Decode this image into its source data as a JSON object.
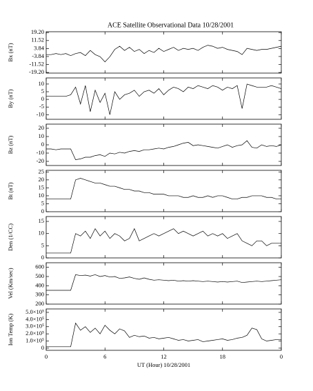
{
  "chart_data": [
    {
      "type": "line",
      "title": "ACE Satellite Observational Data  10/28/2001",
      "ylabel": "Bx (nT)",
      "color": "#000000",
      "x": [
        0,
        0.5,
        1,
        1.5,
        2,
        2.5,
        3,
        3.5,
        4,
        4.5,
        5,
        5.5,
        6,
        6.5,
        7,
        7.5,
        8,
        8.5,
        9,
        9.5,
        10,
        10.5,
        11,
        11.5,
        12,
        12.5,
        13,
        13.5,
        14,
        14.5,
        15,
        15.5,
        16,
        16.5,
        17,
        17.5,
        18,
        18.5,
        19,
        19.5,
        20,
        20.5,
        21,
        21.5,
        22,
        22.5,
        23,
        23.5,
        24
      ],
      "values": [
        -2,
        -2,
        -1,
        -2,
        -1,
        -3,
        -1,
        0,
        -3,
        2,
        -2,
        -4,
        -9,
        -4,
        3,
        6,
        2,
        5,
        1,
        3,
        -1,
        2,
        0,
        4,
        1,
        3,
        5,
        2,
        4,
        3,
        4,
        2,
        5,
        7,
        6,
        4,
        5,
        3,
        2,
        1,
        -2,
        4,
        3,
        2,
        3,
        3,
        4,
        5,
        6
      ],
      "xlim": [
        0,
        24
      ],
      "xticks": [
        0,
        6,
        12,
        18,
        24
      ],
      "ylim": [
        -19.8,
        20
      ],
      "yticks": [
        {
          "value": 19.2,
          "label": "19.20"
        },
        11.52,
        3.84,
        -3.84,
        -11.52,
        {
          "value": -19.2,
          "label": "-19.20"
        }
      ]
    },
    {
      "type": "line",
      "ylabel": "By (nT)",
      "color": "#000000",
      "x": [
        0,
        0.5,
        1,
        1.5,
        2,
        2.5,
        3,
        3.5,
        4,
        4.5,
        5,
        5.5,
        6,
        6.5,
        7,
        7.5,
        8,
        8.5,
        9,
        9.5,
        10,
        10.5,
        11,
        11.5,
        12,
        12.5,
        13,
        13.5,
        14,
        14.5,
        15,
        15.5,
        16,
        16.5,
        17,
        17.5,
        18,
        18.5,
        19,
        19.5,
        20,
        20.5,
        21,
        21.5,
        22,
        22.5,
        23,
        23.5,
        24
      ],
      "values": [
        2,
        2,
        2,
        2,
        2,
        3,
        8,
        -3,
        9,
        -8,
        6,
        -2,
        4,
        -10,
        5,
        0,
        3,
        4,
        6,
        2,
        5,
        6,
        4,
        7,
        3,
        6,
        8,
        7,
        5,
        8,
        7,
        9,
        8,
        7,
        9,
        8,
        6,
        8,
        7,
        9,
        -6,
        10,
        9,
        8,
        8,
        8,
        9,
        8,
        7
      ],
      "xlim": [
        0,
        24
      ],
      "xticks": [
        0,
        6,
        12,
        18,
        24
      ],
      "ylim": [
        -13,
        14
      ],
      "yticks": [
        10,
        5,
        0,
        -5,
        -10
      ]
    },
    {
      "type": "line",
      "ylabel": "Bz (nT)",
      "color": "#000000",
      "x": [
        0,
        0.5,
        1,
        1.5,
        2,
        2.5,
        3,
        3.5,
        4,
        4.5,
        5,
        5.5,
        6,
        6.5,
        7,
        7.5,
        8,
        8.5,
        9,
        9.5,
        10,
        10.5,
        11,
        11.5,
        12,
        12.5,
        13,
        13.5,
        14,
        14.5,
        15,
        15.5,
        16,
        16.5,
        17,
        17.5,
        18,
        18.5,
        19,
        19.5,
        20,
        20.5,
        21,
        21.5,
        22,
        22.5,
        23,
        23.5,
        24
      ],
      "values": [
        -5,
        -5,
        -6,
        -5,
        -5,
        -5,
        -18,
        -17,
        -15,
        -15,
        -13,
        -12,
        -14,
        -10,
        -11,
        -9,
        -10,
        -8,
        -7,
        -8,
        -6,
        -6,
        -5,
        -4,
        -5,
        -3,
        -2,
        0,
        2,
        3,
        -1,
        0,
        -1,
        -2,
        -3,
        -4,
        -2,
        0,
        -3,
        -1,
        0,
        5,
        -3,
        -4,
        0,
        -2,
        -1,
        -2,
        0
      ],
      "xlim": [
        0,
        24
      ],
      "xticks": [
        0,
        6,
        12,
        18,
        24
      ],
      "ylim": [
        -25,
        25
      ],
      "yticks": [
        20,
        10,
        0,
        -10,
        -20
      ]
    },
    {
      "type": "line",
      "ylabel": "Bt (nT)",
      "color": "#000000",
      "x": [
        0,
        0.5,
        1,
        1.5,
        2,
        2.5,
        3,
        3.5,
        4,
        4.5,
        5,
        5.5,
        6,
        6.5,
        7,
        7.5,
        8,
        8.5,
        9,
        9.5,
        10,
        10.5,
        11,
        11.5,
        12,
        12.5,
        13,
        13.5,
        14,
        14.5,
        15,
        15.5,
        16,
        16.5,
        17,
        17.5,
        18,
        18.5,
        19,
        19.5,
        20,
        20.5,
        21,
        21.5,
        22,
        22.5,
        23,
        23.5,
        24
      ],
      "values": [
        8,
        8,
        8,
        8,
        8,
        8,
        20,
        21,
        20,
        19,
        18,
        18,
        17,
        16,
        16,
        15,
        14,
        14,
        13,
        13,
        12,
        12,
        11,
        11,
        11,
        10,
        10,
        10,
        9,
        9,
        10,
        9,
        9,
        10,
        9,
        10,
        10,
        9,
        8,
        8,
        9,
        9,
        10,
        10,
        10,
        9,
        9,
        8,
        8
      ],
      "xlim": [
        0,
        24
      ],
      "xticks": [
        0,
        6,
        12,
        18,
        24
      ],
      "ylim": [
        0,
        26
      ],
      "yticks": [
        25,
        20,
        15,
        10,
        5,
        0
      ]
    },
    {
      "type": "line",
      "ylabel": "Den (1/CC)",
      "color": "#000000",
      "x": [
        0,
        0.5,
        1,
        1.5,
        2,
        2.5,
        3,
        3.5,
        4,
        4.5,
        5,
        5.5,
        6,
        6.5,
        7,
        7.5,
        8,
        8.5,
        9,
        9.5,
        10,
        10.5,
        11,
        11.5,
        12,
        12.5,
        13,
        13.5,
        14,
        14.5,
        15,
        15.5,
        16,
        16.5,
        17,
        17.5,
        18,
        18.5,
        19,
        19.5,
        20,
        20.5,
        21,
        21.5,
        22,
        22.5,
        23,
        23.5,
        24
      ],
      "values": [
        2,
        2,
        2,
        2,
        2,
        2,
        10,
        9,
        11,
        8,
        12,
        9,
        11,
        8,
        10,
        9,
        7,
        8,
        12,
        7,
        8,
        9,
        10,
        9,
        10,
        11,
        12,
        10,
        11,
        10,
        9,
        10,
        11,
        9,
        10,
        9,
        10,
        8,
        9,
        10,
        7,
        6,
        5,
        7,
        7,
        5,
        6,
        6,
        6
      ],
      "xlim": [
        0,
        24
      ],
      "xticks": [
        0,
        6,
        12,
        18,
        24
      ],
      "ylim": [
        0,
        17
      ],
      "yticks": [
        15,
        10,
        5,
        0
      ]
    },
    {
      "type": "line",
      "ylabel": "Vel (Km/sec)",
      "color": "#000000",
      "x": [
        0,
        0.5,
        1,
        1.5,
        2,
        2.5,
        3,
        3.5,
        4,
        4.5,
        5,
        5.5,
        6,
        6.5,
        7,
        7.5,
        8,
        8.5,
        9,
        9.5,
        10,
        10.5,
        11,
        11.5,
        12,
        12.5,
        13,
        13.5,
        14,
        14.5,
        15,
        15.5,
        16,
        16.5,
        17,
        17.5,
        18,
        18.5,
        19,
        19.5,
        20,
        20.5,
        21,
        21.5,
        22,
        22.5,
        23,
        23.5,
        24
      ],
      "values": [
        350,
        350,
        350,
        350,
        350,
        350,
        520,
        510,
        515,
        505,
        520,
        500,
        510,
        495,
        500,
        480,
        485,
        495,
        480,
        470,
        485,
        470,
        460,
        465,
        460,
        455,
        460,
        450,
        455,
        450,
        455,
        450,
        445,
        450,
        445,
        440,
        445,
        440,
        445,
        450,
        435,
        440,
        445,
        450,
        445,
        450,
        455,
        460,
        465
      ],
      "xlim": [
        0,
        24
      ],
      "xticks": [
        0,
        6,
        12,
        18,
        24
      ],
      "ylim": [
        200,
        650
      ],
      "yticks": [
        600,
        500,
        400,
        300,
        200
      ]
    },
    {
      "type": "line",
      "ylabel": "Ion Temp (K)",
      "xlabel": "UT (Hour)  10/28/2001",
      "color": "#000000",
      "x": [
        0,
        0.5,
        1,
        1.5,
        2,
        2.5,
        3,
        3.5,
        4,
        4.5,
        5,
        5.5,
        6,
        6.5,
        7,
        7.5,
        8,
        8.5,
        9,
        9.5,
        10,
        10.5,
        11,
        11.5,
        12,
        12.5,
        13,
        13.5,
        14,
        14.5,
        15,
        15.5,
        16,
        16.5,
        17,
        17.5,
        18,
        18.5,
        19,
        19.5,
        20,
        20.5,
        21,
        21.5,
        22,
        22.5,
        23,
        23.5,
        24
      ],
      "values": [
        20000,
        20000,
        20000,
        20000,
        20000,
        20000,
        350000,
        250000,
        300000,
        220000,
        280000,
        200000,
        320000,
        250000,
        200000,
        270000,
        240000,
        150000,
        180000,
        160000,
        170000,
        140000,
        150000,
        130000,
        140000,
        150000,
        130000,
        110000,
        120000,
        100000,
        110000,
        120000,
        90000,
        100000,
        110000,
        120000,
        130000,
        110000,
        120000,
        140000,
        150000,
        180000,
        280000,
        260000,
        130000,
        100000,
        110000,
        120000,
        120000
      ],
      "xlim": [
        0,
        24
      ],
      "xticks": [
        0,
        6,
        12,
        18,
        {
          "value": 24,
          "label": "0"
        }
      ],
      "ylim": [
        -30000,
        548000
      ],
      "yticks": [
        {
          "value": 500000,
          "label": "5.0×10⁵"
        },
        {
          "value": 400000,
          "label": "4.0×10⁵"
        },
        {
          "value": 300000,
          "label": "3.0×10⁵"
        },
        {
          "value": 200000,
          "label": "2.0×10⁵"
        },
        {
          "value": 100000,
          "label": "1.0×10⁵"
        },
        0
      ]
    }
  ]
}
